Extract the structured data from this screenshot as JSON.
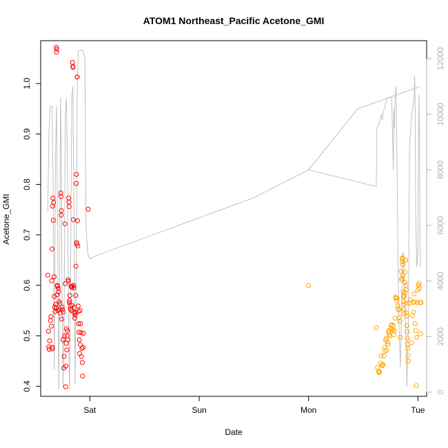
{
  "chart_data": {
    "type": "scatter",
    "title": "ATOM1 Northeast_Pacific Acetone_GMI",
    "xlabel": "Date",
    "ylabel": "Acetone_GMI",
    "xlim": [
      -0.45,
      3.08
    ],
    "ylim": [
      0.38,
      1.085
    ],
    "y2lim": [
      -150,
      12650
    ],
    "x_ticks": [
      {
        "value": 0,
        "label": "Sat"
      },
      {
        "value": 1,
        "label": "Sun"
      },
      {
        "value": 2,
        "label": "Mon"
      },
      {
        "value": 3,
        "label": "Tue"
      }
    ],
    "y_ticks": [
      0.4,
      0.5,
      0.6,
      0.7,
      0.8,
      0.9,
      1.0
    ],
    "y2_ticks": [
      0,
      2000,
      4000,
      6000,
      8000,
      10000,
      12000
    ],
    "grid": false,
    "colors": {
      "series_red": "#ff0000",
      "series_orange": "#ffa500",
      "altitude_line": "#c0c0c0",
      "right_axis": "#b0b0b0"
    },
    "series": [
      {
        "color": "#ff0000",
        "points": [
          [
            -0.385,
            0.62
          ],
          [
            -0.378,
            0.509
          ],
          [
            -0.376,
            0.478
          ],
          [
            -0.372,
            0.473
          ],
          [
            -0.368,
            0.49
          ],
          [
            -0.36,
            0.53
          ],
          [
            -0.357,
            0.538
          ],
          [
            -0.352,
            0.519
          ],
          [
            -0.349,
            0.609
          ],
          [
            -0.346,
            0.672
          ],
          [
            -0.344,
            0.477
          ],
          [
            -0.342,
            0.474
          ],
          [
            -0.341,
            0.757
          ],
          [
            -0.338,
            0.773
          ],
          [
            -0.334,
            0.729
          ],
          [
            -0.331,
            0.764
          ],
          [
            -0.327,
            0.617
          ],
          [
            -0.325,
            0.578
          ],
          [
            -0.322,
            0.557
          ],
          [
            -0.318,
            0.548
          ],
          [
            -0.314,
            0.562
          ],
          [
            -0.309,
            0.555
          ],
          [
            -0.307,
            1.072
          ],
          [
            -0.305,
            1.062
          ],
          [
            -0.303,
            1.068
          ],
          [
            -0.301,
            0.581
          ],
          [
            -0.299,
            0.6
          ],
          [
            -0.296,
            0.598
          ],
          [
            -0.293,
            0.55
          ],
          [
            -0.29,
            0.594
          ],
          [
            -0.286,
            0.587
          ],
          [
            -0.282,
            0.568
          ],
          [
            -0.278,
            0.552
          ],
          [
            -0.275,
            0.564
          ],
          [
            -0.271,
            0.545
          ],
          [
            -0.266,
            0.783
          ],
          [
            -0.264,
            0.776
          ],
          [
            -0.262,
            0.739
          ],
          [
            -0.26,
            0.748
          ],
          [
            -0.258,
            0.533
          ],
          [
            -0.254,
            0.557
          ],
          [
            -0.25,
            0.552
          ],
          [
            -0.246,
            0.492
          ],
          [
            -0.242,
            0.547
          ],
          [
            -0.238,
            0.436
          ],
          [
            -0.235,
            0.459
          ],
          [
            -0.231,
            0.5
          ],
          [
            -0.228,
            0.722
          ],
          [
            -0.225,
            0.603
          ],
          [
            -0.222,
            0.399
          ],
          [
            -0.22,
            0.44
          ],
          [
            -0.217,
            0.485
          ],
          [
            -0.214,
            0.514
          ],
          [
            -0.211,
            0.472
          ],
          [
            -0.208,
            0.5
          ],
          [
            -0.205,
            0.51
          ],
          [
            -0.201,
            0.492
          ],
          [
            -0.199,
            0.611
          ],
          [
            -0.197,
            0.608
          ],
          [
            -0.194,
            0.773
          ],
          [
            -0.192,
            0.765
          ],
          [
            -0.19,
            0.756
          ],
          [
            -0.188,
            0.566
          ],
          [
            -0.186,
            0.57
          ],
          [
            -0.183,
            0.58
          ],
          [
            -0.18,
            0.56
          ],
          [
            -0.178,
            0.553
          ],
          [
            -0.175,
            0.553
          ],
          [
            -0.172,
            0.598
          ],
          [
            -0.169,
            0.55
          ],
          [
            -0.166,
            0.596
          ],
          [
            -0.164,
            0.598
          ],
          [
            -0.162,
            0.56
          ],
          [
            -0.159,
            1.042
          ],
          [
            -0.156,
            1.034
          ],
          [
            -0.154,
            1.032
          ],
          [
            -0.152,
            0.73
          ],
          [
            -0.149,
            0.6
          ],
          [
            -0.147,
            0.595
          ],
          [
            -0.144,
            0.545
          ],
          [
            -0.141,
            0.556
          ],
          [
            -0.138,
            0.535
          ],
          [
            -0.135,
            0.541
          ],
          [
            -0.132,
            0.546
          ],
          [
            -0.129,
            0.58
          ],
          [
            -0.127,
            0.638
          ],
          [
            -0.125,
            0.802
          ],
          [
            -0.123,
            0.82
          ],
          [
            -0.121,
            0.685
          ],
          [
            -0.119,
            0.682
          ],
          [
            -0.117,
            1.013
          ],
          [
            -0.115,
            1.013
          ],
          [
            -0.113,
            0.728
          ],
          [
            -0.11,
            0.678
          ],
          [
            -0.107,
            0.559
          ],
          [
            -0.105,
            0.548
          ],
          [
            -0.103,
            0.524
          ],
          [
            -0.1,
            0.507
          ],
          [
            -0.097,
            0.492
          ],
          [
            -0.094,
            0.465
          ],
          [
            -0.091,
            0.55
          ],
          [
            -0.088,
            0.482
          ],
          [
            -0.085,
            0.524
          ],
          [
            -0.081,
            0.506
          ],
          [
            -0.077,
            0.459
          ],
          [
            -0.073,
            0.475
          ],
          [
            -0.069,
            0.447
          ],
          [
            -0.066,
            0.42
          ],
          [
            -0.063,
            0.477
          ],
          [
            -0.06,
            0.505
          ],
          [
            -0.015,
            0.751
          ]
        ]
      },
      {
        "color": "#ffa500",
        "points": [
          [
            2.0,
            0.6
          ],
          [
            2.62,
            0.516
          ],
          [
            2.63,
            0.437
          ],
          [
            2.64,
            0.43
          ],
          [
            2.645,
            0.427
          ],
          [
            2.65,
            0.428
          ],
          [
            2.66,
            0.446
          ],
          [
            2.665,
            0.46
          ],
          [
            2.67,
            0.441
          ],
          [
            2.675,
            0.441
          ],
          [
            2.68,
            0.443
          ],
          [
            2.69,
            0.46
          ],
          [
            2.695,
            0.477
          ],
          [
            2.7,
            0.47
          ],
          [
            2.705,
            0.492
          ],
          [
            2.71,
            0.495
          ],
          [
            2.715,
            0.471
          ],
          [
            2.72,
            0.488
          ],
          [
            2.725,
            0.483
          ],
          [
            2.73,
            0.51
          ],
          [
            2.735,
            0.507
          ],
          [
            2.74,
            0.503
          ],
          [
            2.745,
            0.5
          ],
          [
            2.75,
            0.514
          ],
          [
            2.755,
            0.521
          ],
          [
            2.76,
            0.522
          ],
          [
            2.765,
            0.512
          ],
          [
            2.77,
            0.512
          ],
          [
            2.775,
            0.52
          ],
          [
            2.78,
            0.502
          ],
          [
            2.785,
            0.51
          ],
          [
            2.79,
            0.535
          ],
          [
            2.795,
            0.577
          ],
          [
            2.8,
            0.575
          ],
          [
            2.805,
            0.569
          ],
          [
            2.81,
            0.574
          ],
          [
            2.815,
            0.559
          ],
          [
            2.82,
            0.553
          ],
          [
            2.825,
            0.551
          ],
          [
            2.83,
            0.536
          ],
          [
            2.835,
            0.529
          ],
          [
            2.84,
            0.497
          ],
          [
            2.845,
            0.628
          ],
          [
            2.85,
            0.611
          ],
          [
            2.853,
            0.614
          ],
          [
            2.856,
            0.654
          ],
          [
            2.858,
            0.652
          ],
          [
            2.86,
            0.647
          ],
          [
            2.862,
            0.641
          ],
          [
            2.864,
            0.62
          ],
          [
            2.866,
            0.588
          ],
          [
            2.868,
            0.578
          ],
          [
            2.87,
            0.568
          ],
          [
            2.872,
            0.563
          ],
          [
            2.874,
            0.553
          ],
          [
            2.876,
            0.544
          ],
          [
            2.878,
            0.579
          ],
          [
            2.88,
            0.586
          ],
          [
            2.882,
            0.606
          ],
          [
            2.884,
            0.626
          ],
          [
            2.886,
            0.65
          ],
          [
            2.888,
            0.65
          ],
          [
            2.89,
            0.6
          ],
          [
            2.892,
            0.591
          ],
          [
            2.894,
            0.564
          ],
          [
            2.896,
            0.545
          ],
          [
            2.898,
            0.539
          ],
          [
            2.9,
            0.52
          ],
          [
            2.902,
            0.508
          ],
          [
            2.904,
            0.495
          ],
          [
            2.906,
            0.483
          ],
          [
            2.908,
            0.475
          ],
          [
            2.91,
            0.461
          ],
          [
            2.912,
            0.45
          ],
          [
            2.92,
            0.565
          ],
          [
            2.93,
            0.571
          ],
          [
            2.94,
            0.486
          ],
          [
            2.95,
            0.54
          ],
          [
            2.955,
            0.566
          ],
          [
            2.96,
            0.547
          ],
          [
            2.965,
            0.583
          ],
          [
            2.97,
            0.567
          ],
          [
            2.975,
            0.524
          ],
          [
            2.98,
            0.51
          ],
          [
            2.985,
            0.401
          ],
          [
            2.99,
            0.497
          ],
          [
            2.995,
            0.566
          ],
          [
            3.0,
            0.591
          ],
          [
            3.005,
            0.6
          ],
          [
            3.01,
            0.604
          ],
          [
            3.015,
            0.594
          ],
          [
            3.02,
            0.566
          ],
          [
            3.025,
            0.504
          ],
          [
            3.03,
            0.566
          ]
        ]
      }
    ],
    "altitude_line": {
      "color": "#c0c0c0",
      "segments": [
        [
          [
            -0.385,
            6500
          ],
          [
            -0.375,
            9200
          ],
          [
            -0.365,
            10200
          ],
          [
            -0.355,
            10300
          ],
          [
            -0.345,
            10300
          ],
          [
            -0.335,
            7000
          ],
          [
            -0.325,
            800
          ],
          [
            -0.315,
            8500
          ],
          [
            -0.305,
            10300
          ],
          [
            -0.295,
            6000
          ],
          [
            -0.285,
            100
          ],
          [
            -0.275,
            5000
          ],
          [
            -0.268,
            10600
          ],
          [
            -0.262,
            9000
          ],
          [
            -0.255,
            4000
          ],
          [
            -0.245,
            200
          ],
          [
            -0.235,
            3000
          ],
          [
            -0.225,
            10000
          ],
          [
            -0.215,
            10600
          ],
          [
            -0.205,
            8000
          ],
          [
            -0.195,
            2000
          ],
          [
            -0.185,
            100
          ],
          [
            -0.175,
            5000
          ],
          [
            -0.165,
            10700
          ],
          [
            -0.155,
            11000
          ],
          [
            -0.145,
            6000
          ],
          [
            -0.135,
            300
          ],
          [
            -0.125,
            4500
          ],
          [
            -0.115,
            11000
          ],
          [
            -0.105,
            12300
          ],
          [
            -0.085,
            12300
          ],
          [
            -0.065,
            12300
          ],
          [
            -0.045,
            12000
          ],
          [
            -0.035,
            6000
          ],
          [
            -0.02,
            5000
          ],
          [
            0.0,
            4800
          ],
          [
            0.05,
            4900
          ],
          [
            1.5,
            7000
          ],
          [
            2.0,
            8000
          ],
          [
            2.62,
            7400
          ],
          [
            2.625,
            9500
          ],
          [
            2.64,
            9600
          ],
          [
            2.655,
            9800
          ],
          [
            2.665,
            10000
          ],
          [
            2.675,
            9800
          ],
          [
            2.68,
            10000
          ],
          [
            2.7,
            10300
          ],
          [
            2.72,
            10600
          ],
          [
            2.745,
            10600
          ],
          [
            2.76,
            10600
          ],
          [
            2.77,
            9000
          ],
          [
            2.775,
            8000
          ],
          [
            2.78,
            10200
          ],
          [
            2.785,
            9500
          ],
          [
            2.79,
            10400
          ],
          [
            2.795,
            10800
          ],
          [
            2.8,
            11000
          ],
          [
            2.81,
            8000
          ],
          [
            2.82,
            4000
          ],
          [
            2.83,
            2000
          ],
          [
            2.84,
            900
          ],
          [
            2.85,
            3000
          ],
          [
            2.86,
            5000
          ],
          [
            2.87,
            5000
          ],
          [
            2.88,
            3000
          ],
          [
            2.89,
            2000
          ],
          [
            2.9,
            200
          ],
          [
            2.91,
            2000
          ],
          [
            2.915,
            3000
          ],
          [
            2.92,
            7000
          ],
          [
            2.925,
            9000
          ],
          [
            2.935,
            9500
          ],
          [
            2.945,
            10000
          ],
          [
            2.955,
            10300
          ],
          [
            2.965,
            10600
          ],
          [
            2.97,
            11400
          ],
          [
            2.975,
            10500
          ],
          [
            2.98,
            6500
          ],
          [
            2.99,
            4500
          ],
          [
            3.0,
            5000
          ],
          [
            3.005,
            8500
          ],
          [
            3.01,
            10700
          ],
          [
            3.015,
            9000
          ],
          [
            3.02,
            5000
          ],
          [
            3.025,
            4500
          ]
        ],
        [
          [
            2.0,
            8000
          ],
          [
            2.45,
            10200
          ],
          [
            3.02,
            11000
          ]
        ]
      ]
    }
  }
}
